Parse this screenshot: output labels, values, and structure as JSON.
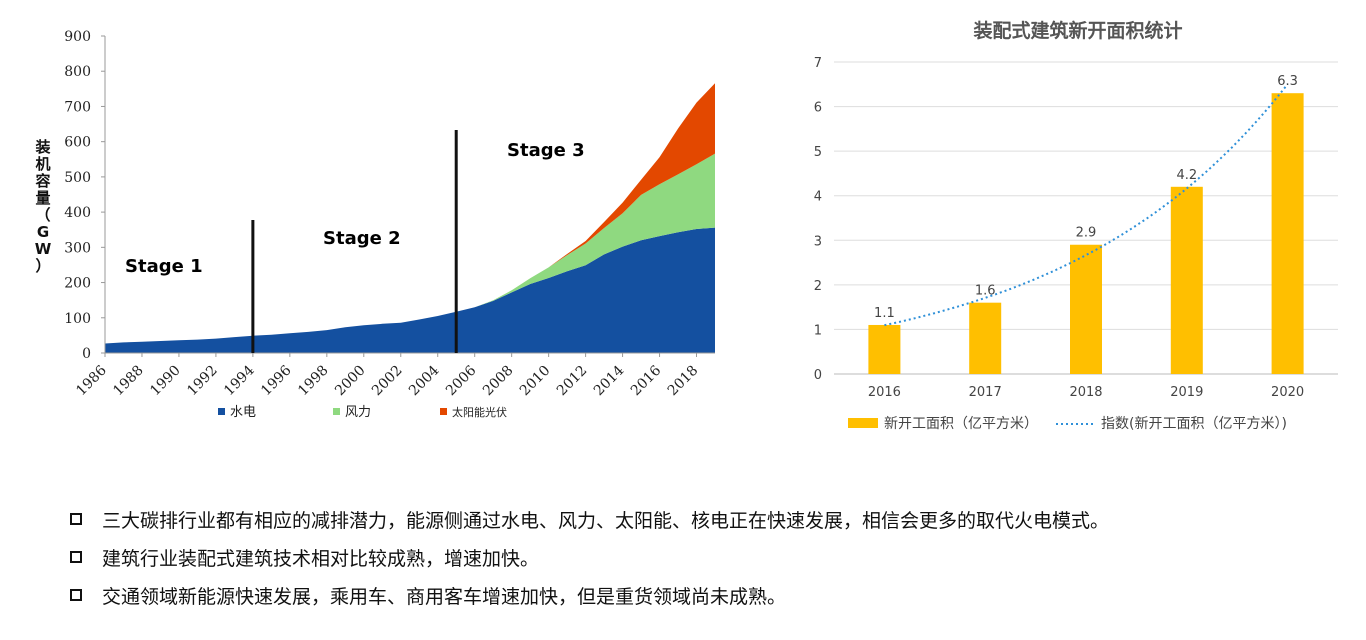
{
  "chart_data": [
    {
      "type": "area",
      "stacked": true,
      "ylabel": "装机容量（GW）",
      "ylim": [
        0,
        900
      ],
      "yticks": [
        0,
        100,
        200,
        300,
        400,
        500,
        600,
        700,
        800,
        900
      ],
      "x": [
        1986,
        1987,
        1988,
        1989,
        1990,
        1991,
        1992,
        1993,
        1994,
        1995,
        1996,
        1997,
        1998,
        1999,
        2000,
        2001,
        2002,
        2003,
        2004,
        2005,
        2006,
        2007,
        2008,
        2009,
        2010,
        2011,
        2012,
        2013,
        2014,
        2015,
        2016,
        2017,
        2018,
        2019
      ],
      "xticks": [
        "1986",
        "1988",
        "1990",
        "1992",
        "1994",
        "1996",
        "1998",
        "2000",
        "2002",
        "2004",
        "2006",
        "2008",
        "2010",
        "2012",
        "2014",
        "2016",
        "2018"
      ],
      "series": [
        {
          "name": "水电",
          "color": "#1450a0",
          "values": [
            27,
            30,
            32,
            34,
            36,
            38,
            41,
            45,
            49,
            52,
            56,
            60,
            65,
            73,
            79,
            83,
            86,
            95,
            105,
            117,
            130,
            148,
            172,
            196,
            213,
            232,
            249,
            280,
            302,
            320,
            332,
            343,
            352,
            356
          ]
        },
        {
          "name": "风力",
          "color": "#8fd980",
          "values": [
            0,
            0,
            0,
            0,
            0,
            0,
            0,
            0,
            0,
            0,
            0,
            0,
            0,
            0,
            0,
            0,
            0,
            0,
            0,
            0,
            0,
            2,
            6,
            16,
            30,
            46,
            62,
            75,
            95,
            129,
            147,
            164,
            184,
            210
          ]
        },
        {
          "name": "太阳能光伏",
          "color": "#e34800",
          "values": [
            0,
            0,
            0,
            0,
            0,
            0,
            0,
            0,
            0,
            0,
            0,
            0,
            0,
            0,
            0,
            0,
            0,
            0,
            0,
            0,
            0,
            0,
            0,
            0,
            0,
            3,
            7,
            17,
            30,
            43,
            77,
            130,
            175,
            200
          ]
        }
      ],
      "stage_dividers": [
        1994,
        2005
      ],
      "annotations": [
        "Stage 1",
        "Stage 2",
        "Stage 3"
      ]
    },
    {
      "type": "bar",
      "title": "装配式建筑新开面积统计",
      "categories": [
        "2016",
        "2017",
        "2018",
        "2019",
        "2020"
      ],
      "values": [
        1.1,
        1.6,
        2.9,
        4.2,
        6.3
      ],
      "data_labels": [
        "1.1",
        "1.6",
        "2.9",
        "4.2",
        "6.3"
      ],
      "ylim": [
        0,
        7
      ],
      "yticks": [
        0,
        1,
        2,
        3,
        4,
        5,
        6,
        7
      ],
      "bar_color": "#ffbf00",
      "trend_color": "#2f90d8",
      "trendline": "exponential",
      "legend": [
        "新开工面积（亿平方米）",
        "指数(新开工面积（亿平方米）)"
      ],
      "legend_position": "bottom"
    }
  ],
  "bullets": [
    "三大碳排行业都有相应的减排潜力，能源侧通过水电、风力、太阳能、核电正在快速发展，相信会更多的取代火电模式。",
    "建筑行业装配式建筑技术相对比较成熟，增速加快。",
    "交通领域新能源快速发展，乘用车、商用客车增速加快，但是重货领域尚未成熟。"
  ]
}
